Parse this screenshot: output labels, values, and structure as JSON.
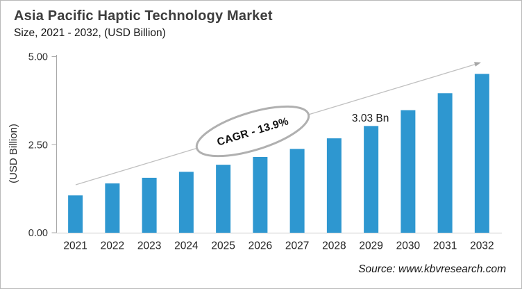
{
  "header": {
    "title": "Asia Pacific Haptic Technology Market",
    "subtitle": "Size, 2021 - 2032, (USD Billion)"
  },
  "footer": {
    "source": "Source: www.kbvresearch.com"
  },
  "chart_data": {
    "type": "bar",
    "title": "Asia Pacific Haptic Technology Market Size, 2021 - 2032, (USD Billion)",
    "categories": [
      "2021",
      "2022",
      "2023",
      "2024",
      "2025",
      "2026",
      "2027",
      "2028",
      "2029",
      "2030",
      "2031",
      "2032"
    ],
    "values": [
      1.06,
      1.4,
      1.56,
      1.73,
      1.93,
      2.15,
      2.38,
      2.68,
      3.03,
      3.48,
      3.96,
      4.51
    ],
    "xlabel": "",
    "ylabel": "(USD Billion)",
    "ylim": [
      0,
      5
    ],
    "yticks": [
      {
        "value": 0,
        "label": "0.00"
      },
      {
        "value": 2.5,
        "label": "2.50"
      },
      {
        "value": 5,
        "label": "5.00"
      }
    ],
    "grid": false,
    "legend": false,
    "colors": {
      "bar": "#2E97D0",
      "axis_line": "#A9A9A9",
      "baseline": "#D9D9D9",
      "arrow": "#C0C0C0",
      "arrowhead": "#A6A6A6",
      "ellipse_stroke": "#B0B0B0",
      "text": "#1A1A1A"
    },
    "annotations": {
      "cagr_label": "CAGR - 13.9%",
      "data_label": {
        "category": "2029",
        "text": "3.03 Bn"
      },
      "trend_arrow": true
    }
  }
}
